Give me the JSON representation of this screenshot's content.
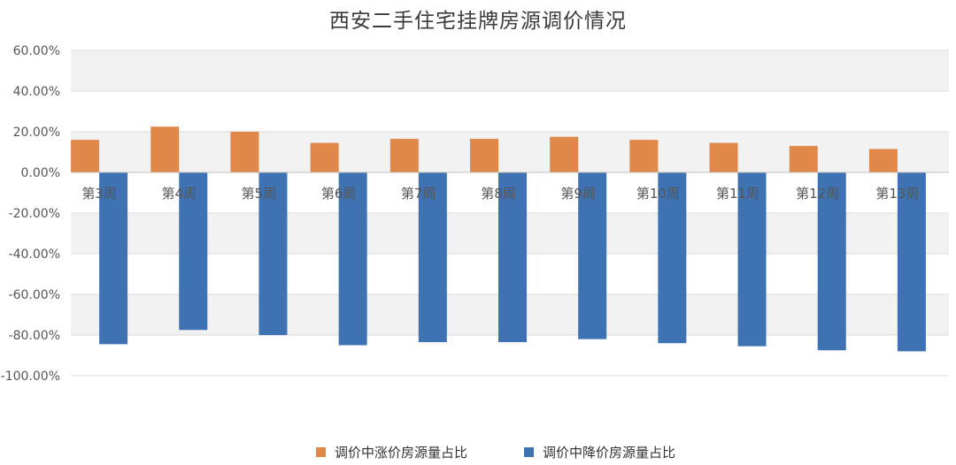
{
  "chart_data": {
    "type": "bar",
    "title": "西安二手住宅挂牌房源调价情况",
    "categories": [
      "第3周",
      "第4周",
      "第5周",
      "第6周",
      "第7周",
      "第8周",
      "第9周",
      "第10周",
      "第11周",
      "第12周",
      "第13周"
    ],
    "series": [
      {
        "name": "调价中涨价房源量占比",
        "color": "#E0874A",
        "values": [
          16.0,
          22.5,
          20.0,
          14.5,
          16.5,
          16.5,
          17.5,
          16.0,
          14.5,
          13.0,
          11.5
        ]
      },
      {
        "name": "调价中降价房源量占比",
        "color": "#3F72B2",
        "values": [
          -84.5,
          -77.5,
          -80.0,
          -85.0,
          -83.5,
          -83.5,
          -82.0,
          -84.0,
          -85.5,
          -87.5,
          -88.0
        ]
      }
    ],
    "ylim": [
      -100,
      60
    ],
    "yticks": [
      60,
      40,
      20,
      0,
      -20,
      -40,
      -60,
      -80,
      -100
    ],
    "ytick_labels": [
      "60.00%",
      "40.00%",
      "20.00%",
      "0.00%",
      "-20.00%",
      "-40.00%",
      "-60.00%",
      "-80.00%",
      "-100.00%"
    ],
    "xlabel": "",
    "ylabel": "",
    "grid": true,
    "legend_position": "bottom"
  }
}
